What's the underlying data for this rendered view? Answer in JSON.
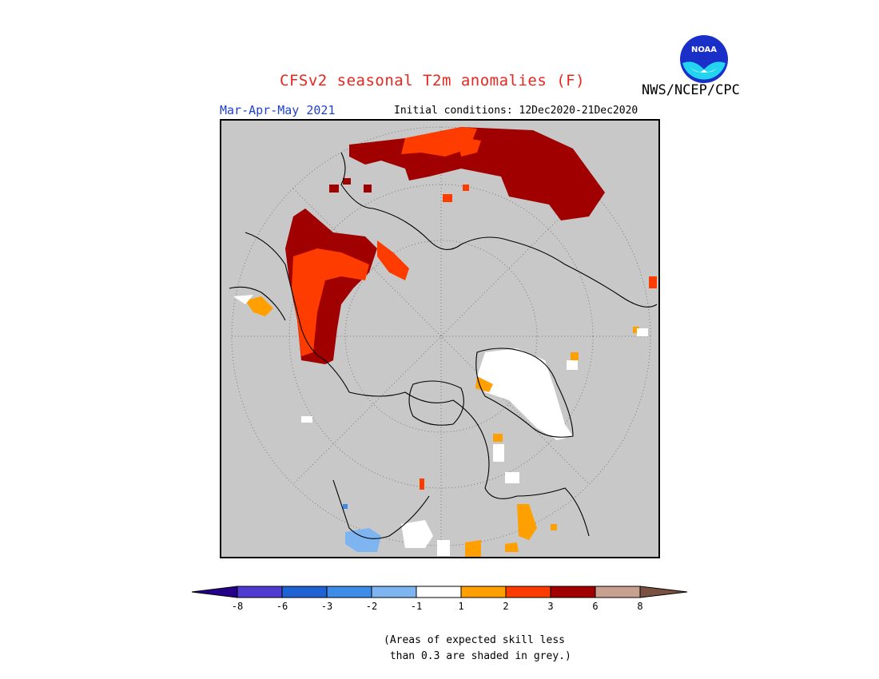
{
  "title": "CFSv2 seasonal T2m anomalies (F)",
  "agency": "NWS/NCEP/CPC",
  "logo": {
    "icon": "noaa-logo",
    "text": "NOAA"
  },
  "season": "Mar-Apr-May 2021",
  "initial_conditions": "Initial conditions: 12Dec2020-21Dec2020",
  "colors": {
    "grey_shade": "#c8c8c8",
    "white": "#ffffff",
    "orange": "#ffa000",
    "red_orange": "#ff3c00",
    "dark_red": "#a00000",
    "light_blue": "#7eb4f0"
  },
  "colorbar": {
    "colors": [
      "#24008a",
      "#4f3bd0",
      "#1e62d4",
      "#3c8ce8",
      "#7eb4f0",
      "#ffffff",
      "#ffa000",
      "#ff3c00",
      "#a00000",
      "#c8a090",
      "#7a5040"
    ],
    "tick_labels": [
      "-8",
      "-6",
      "-3",
      "-2",
      "-1",
      "1",
      "2",
      "3",
      "6",
      "8"
    ]
  },
  "note": "(Areas of expected skill less\n than 0.3 are shaded in grey.)"
}
